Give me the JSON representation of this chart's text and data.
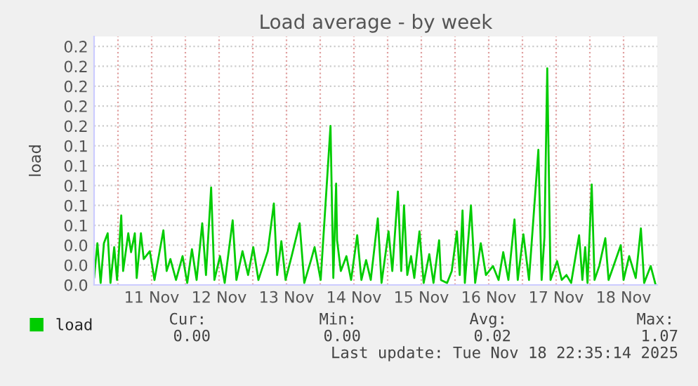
{
  "chart_data": {
    "type": "line",
    "title": "Load average - by week",
    "ylabel": "load",
    "xlim": [
      "2025-11-10T15:30",
      "2025-11-19T00:00"
    ],
    "xticks": [
      {
        "value": "2025-11-11T00:00",
        "label": null
      },
      {
        "value": "2025-11-11T12:00",
        "label": "11 Nov"
      },
      {
        "value": "2025-11-12T00:00",
        "label": null
      },
      {
        "value": "2025-11-12T12:00",
        "label": "12 Nov"
      },
      {
        "value": "2025-11-13T00:00",
        "label": null
      },
      {
        "value": "2025-11-13T12:00",
        "label": "13 Nov"
      },
      {
        "value": "2025-11-14T00:00",
        "label": null
      },
      {
        "value": "2025-11-14T12:00",
        "label": "14 Nov"
      },
      {
        "value": "2025-11-15T00:00",
        "label": null
      },
      {
        "value": "2025-11-15T12:00",
        "label": "15 Nov"
      },
      {
        "value": "2025-11-16T00:00",
        "label": null
      },
      {
        "value": "2025-11-16T12:00",
        "label": "16 Nov"
      },
      {
        "value": "2025-11-17T00:00",
        "label": null
      },
      {
        "value": "2025-11-17T12:00",
        "label": "17 Nov"
      },
      {
        "value": "2025-11-18T00:00",
        "label": null
      },
      {
        "value": "2025-11-18T12:00",
        "label": "18 Nov"
      }
    ],
    "ylim": [
      0,
      0.25
    ],
    "yticks": [
      {
        "value": 0,
        "label": "0.0"
      },
      {
        "value": 0.02,
        "label": "0.0"
      },
      {
        "value": 0.04,
        "label": "0.0"
      },
      {
        "value": 0.06,
        "label": "0.1"
      },
      {
        "value": 0.08,
        "label": "0.1"
      },
      {
        "value": 0.1,
        "label": "0.1"
      },
      {
        "value": 0.12,
        "label": "0.1"
      },
      {
        "value": 0.14,
        "label": "0.1"
      },
      {
        "value": 0.16,
        "label": "0.2"
      },
      {
        "value": 0.18,
        "label": "0.2"
      },
      {
        "value": 0.2,
        "label": "0.2"
      },
      {
        "value": 0.22,
        "label": "0.2"
      },
      {
        "value": 0.24,
        "label": "0.2"
      }
    ],
    "grid": true,
    "legend": "bottom left",
    "marker": "none",
    "line_style": "solid",
    "annotations": [
      "Cur:",
      "Min:",
      "Avg:",
      "Max:",
      "0.00",
      "0.00",
      "0.02",
      "1.07",
      "Last update: Tue Nov 18 22:35:14 2025"
    ],
    "series": [
      {
        "name": "load",
        "color": "#00cc00",
        "x": [
          "2025-11-10T15:30",
          "2025-11-10T16:40",
          "2025-11-10T17:50",
          "2025-11-10T19:00",
          "2025-11-10T20:20",
          "2025-11-10T21:20",
          "2025-11-10T22:40",
          "2025-11-10T23:40",
          "2025-11-11T01:10",
          "2025-11-11T01:50",
          "2025-11-11T03:40",
          "2025-11-11T04:40",
          "2025-11-11T06:00",
          "2025-11-11T06:40",
          "2025-11-11T08:10",
          "2025-11-11T09:10",
          "2025-11-11T11:20",
          "2025-11-11T13:00",
          "2025-11-11T16:10",
          "2025-11-11T17:20",
          "2025-11-11T18:40",
          "2025-11-11T20:40",
          "2025-11-11T23:00",
          "2025-11-12T00:40",
          "2025-11-12T02:20",
          "2025-11-12T04:00",
          "2025-11-12T06:00",
          "2025-11-12T07:20",
          "2025-11-12T09:10",
          "2025-11-12T10:20",
          "2025-11-12T12:20",
          "2025-11-12T14:00",
          "2025-11-12T16:50",
          "2025-11-12T18:10",
          "2025-11-12T20:20",
          "2025-11-12T22:20",
          "2025-11-13T00:10",
          "2025-11-13T02:00",
          "2025-11-13T05:20",
          "2025-11-13T07:30",
          "2025-11-13T08:40",
          "2025-11-13T10:10",
          "2025-11-13T11:40",
          "2025-11-13T13:50",
          "2025-11-13T16:40",
          "2025-11-13T18:20",
          "2025-11-13T20:50",
          "2025-11-13T22:00",
          "2025-11-14T00:10",
          "2025-11-14T03:40",
          "2025-11-14T04:40",
          "2025-11-14T05:40",
          "2025-11-14T06:00",
          "2025-11-14T07:20",
          "2025-11-14T09:20",
          "2025-11-14T11:00",
          "2025-11-14T13:10",
          "2025-11-14T14:40",
          "2025-11-14T16:20",
          "2025-11-14T18:00",
          "2025-11-14T20:30",
          "2025-11-14T21:50",
          "2025-11-15T00:20",
          "2025-11-15T01:40",
          "2025-11-15T03:40",
          "2025-11-15T04:50",
          "2025-11-15T05:50",
          "2025-11-15T07:00",
          "2025-11-15T08:20",
          "2025-11-15T09:30",
          "2025-11-15T11:20",
          "2025-11-15T12:50",
          "2025-11-15T14:50",
          "2025-11-15T16:20",
          "2025-11-15T18:20",
          "2025-11-15T19:00",
          "2025-11-15T21:10",
          "2025-11-15T22:50",
          "2025-11-16T00:40",
          "2025-11-16T01:40",
          "2025-11-16T02:40",
          "2025-11-16T03:30",
          "2025-11-16T05:40",
          "2025-11-16T07:10",
          "2025-11-16T09:10",
          "2025-11-16T11:00",
          "2025-11-16T13:30",
          "2025-11-16T15:30",
          "2025-11-16T17:10",
          "2025-11-16T19:00",
          "2025-11-16T21:10",
          "2025-11-16T22:20",
          "2025-11-17T00:20",
          "2025-11-17T02:20",
          "2025-11-17T05:40",
          "2025-11-17T06:50",
          "2025-11-17T07:50",
          "2025-11-17T08:50",
          "2025-11-17T10:00",
          "2025-11-17T12:20",
          "2025-11-17T14:00",
          "2025-11-17T15:40",
          "2025-11-17T17:20",
          "2025-11-17T20:10",
          "2025-11-17T21:20",
          "2025-11-17T22:20",
          "2025-11-17T23:10",
          "2025-11-18T00:40",
          "2025-11-18T01:40",
          "2025-11-18T03:20",
          "2025-11-18T05:30",
          "2025-11-18T06:40",
          "2025-11-18T08:40",
          "2025-11-18T11:00",
          "2025-11-18T12:00",
          "2025-11-18T14:00",
          "2025-11-18T16:20",
          "2025-11-18T18:10",
          "2025-11-18T19:20",
          "2025-11-18T21:40",
          "2025-11-18T23:20"
        ],
        "values": [
          0.007,
          0.042,
          0.002,
          0.042,
          0.052,
          0.002,
          0.038,
          0.005,
          0.07,
          0.014,
          0.052,
          0.033,
          0.052,
          0.007,
          0.052,
          0.026,
          0.034,
          0.005,
          0.055,
          0.014,
          0.026,
          0.005,
          0.029,
          0.002,
          0.036,
          0.005,
          0.062,
          0.01,
          0.098,
          0.005,
          0.029,
          0.002,
          0.065,
          0.005,
          0.034,
          0.01,
          0.038,
          0.005,
          0.034,
          0.082,
          0.01,
          0.044,
          0.005,
          0.029,
          0.062,
          0.002,
          0.026,
          0.038,
          0.005,
          0.16,
          0.007,
          0.102,
          0.045,
          0.014,
          0.029,
          0.005,
          0.05,
          0.005,
          0.025,
          0.005,
          0.067,
          0.002,
          0.054,
          0.014,
          0.094,
          0.014,
          0.08,
          0.01,
          0.029,
          0.007,
          0.054,
          0.002,
          0.031,
          0.002,
          0.045,
          0.005,
          0.002,
          0.014,
          0.054,
          0.01,
          0.075,
          0.002,
          0.08,
          0.002,
          0.042,
          0.01,
          0.019,
          0.005,
          0.033,
          0.005,
          0.066,
          0.005,
          0.051,
          0.005,
          0.136,
          0.005,
          0.048,
          0.218,
          0.005,
          0.024,
          0.005,
          0.01,
          0.002,
          0.05,
          0.005,
          0.038,
          0.002,
          0.101,
          0.005,
          0.019,
          0.047,
          0.005,
          0.021,
          0.04,
          0.005,
          0.029,
          0.007,
          0.057,
          0.002,
          0.019,
          0.001
        ]
      }
    ]
  }
}
